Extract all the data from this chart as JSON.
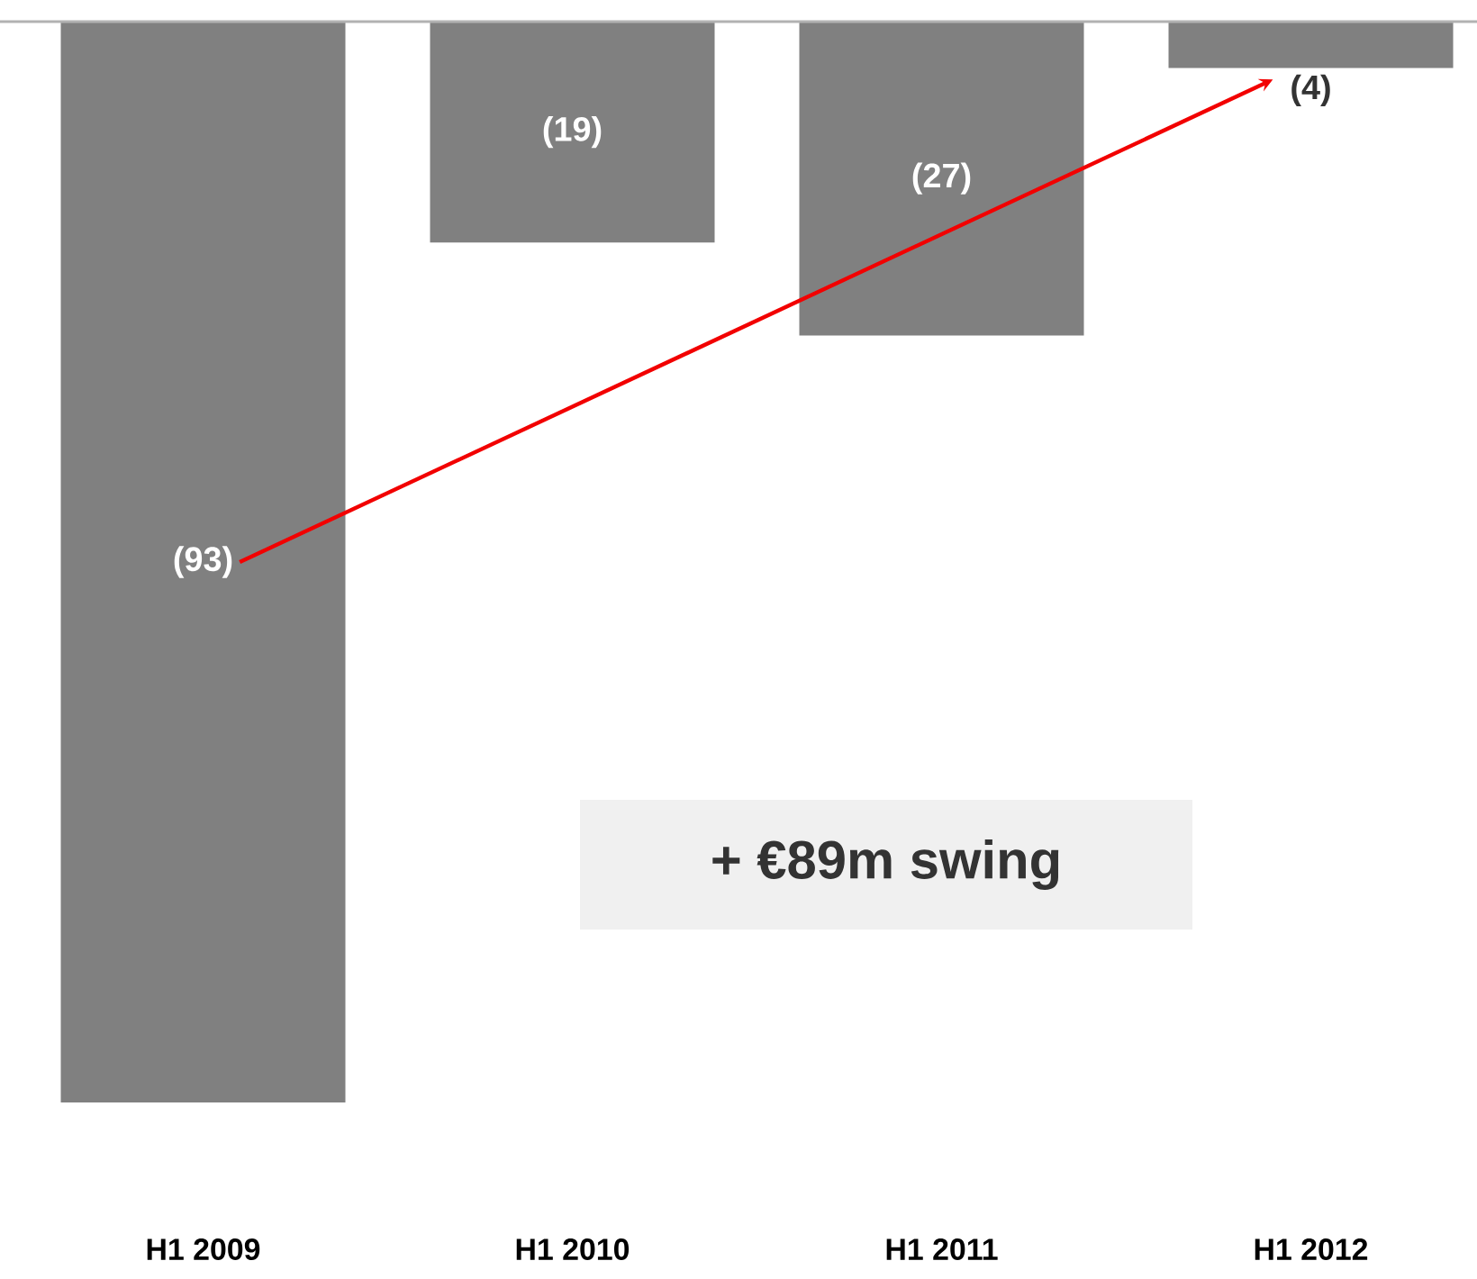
{
  "chart_data": {
    "type": "bar",
    "categories": [
      "H1 2009",
      "H1 2010",
      "H1 2011",
      "H1 2012"
    ],
    "values": [
      -93,
      -19,
      -27,
      -4
    ],
    "value_labels": [
      "(93)",
      "(19)",
      "(27)",
      "(4)"
    ],
    "color": "#808080",
    "annotations": [
      "+ €89m swing"
    ]
  }
}
